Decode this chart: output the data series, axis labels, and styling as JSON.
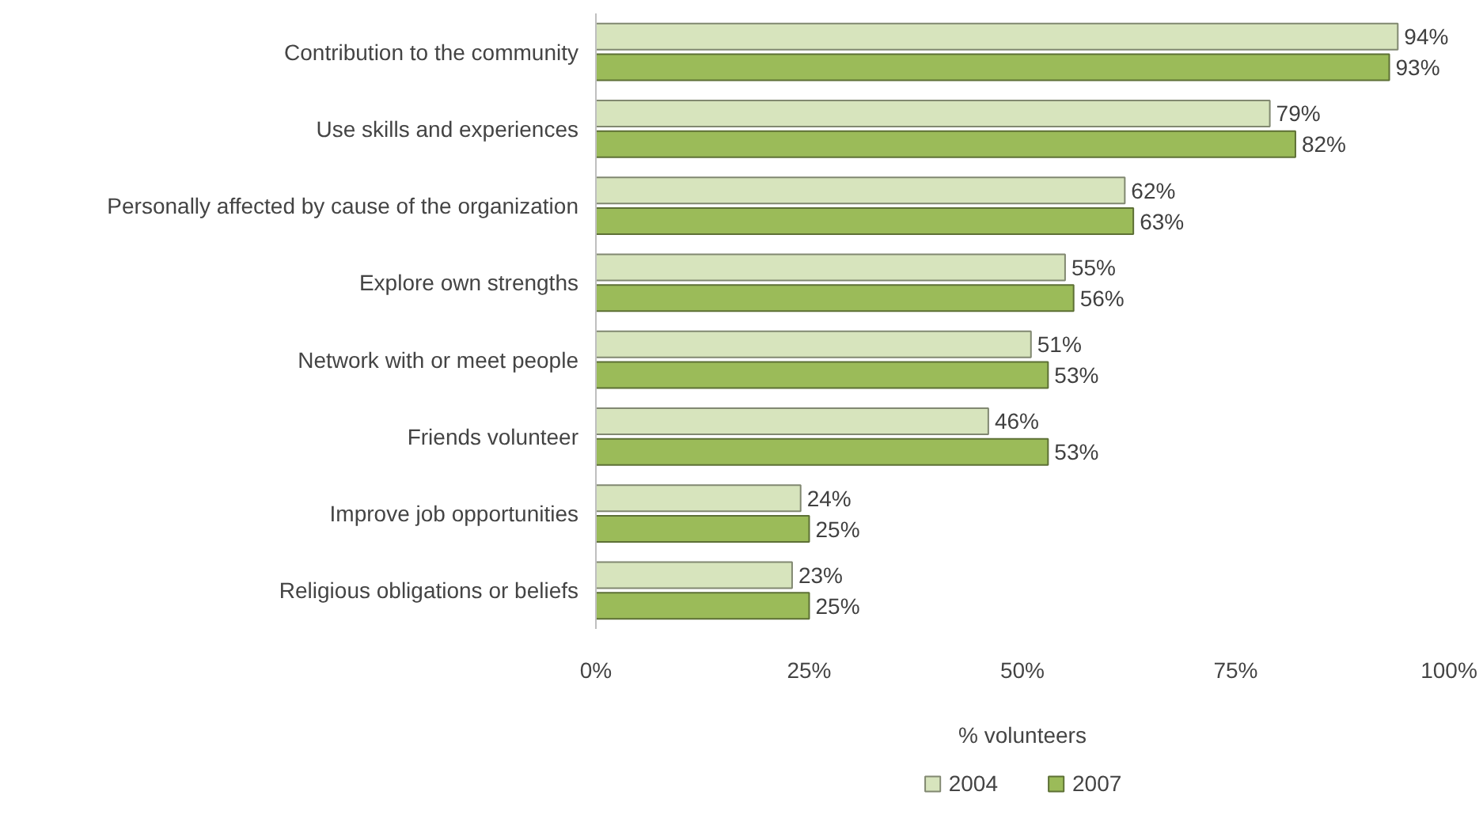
{
  "chart_data": {
    "type": "bar",
    "orientation": "horizontal",
    "xlabel": "% volunteers",
    "categories": [
      "Contribution to the community",
      "Use skills and experiences",
      "Personally affected by cause of the organization",
      "Explore own strengths",
      "Network with or meet people",
      "Friends volunteer",
      "Improve job opportunities",
      "Religious obligations or beliefs"
    ],
    "series": [
      {
        "name": "2004",
        "color": "#d7e4bd",
        "values": [
          94,
          79,
          62,
          55,
          51,
          46,
          24,
          23
        ],
        "value_labels": [
          "94%",
          "79%",
          "62%",
          "55%",
          "51%",
          "46%",
          "24%",
          "23%"
        ]
      },
      {
        "name": "2007",
        "color": "#9bbb59",
        "values": [
          93,
          82,
          63,
          56,
          53,
          53,
          25,
          25
        ],
        "value_labels": [
          "93%",
          "82%",
          "63%",
          "56%",
          "53%",
          "53%",
          "25%",
          "25%"
        ]
      }
    ],
    "xlim": [
      0,
      100
    ],
    "xticks": [
      {
        "value": 0,
        "label": "0%"
      },
      {
        "value": 25,
        "label": "25%"
      },
      {
        "value": 50,
        "label": "50%"
      },
      {
        "value": 75,
        "label": "75%"
      },
      {
        "value": 100,
        "label": "100%"
      }
    ],
    "grid": false,
    "legend": "bottom"
  }
}
